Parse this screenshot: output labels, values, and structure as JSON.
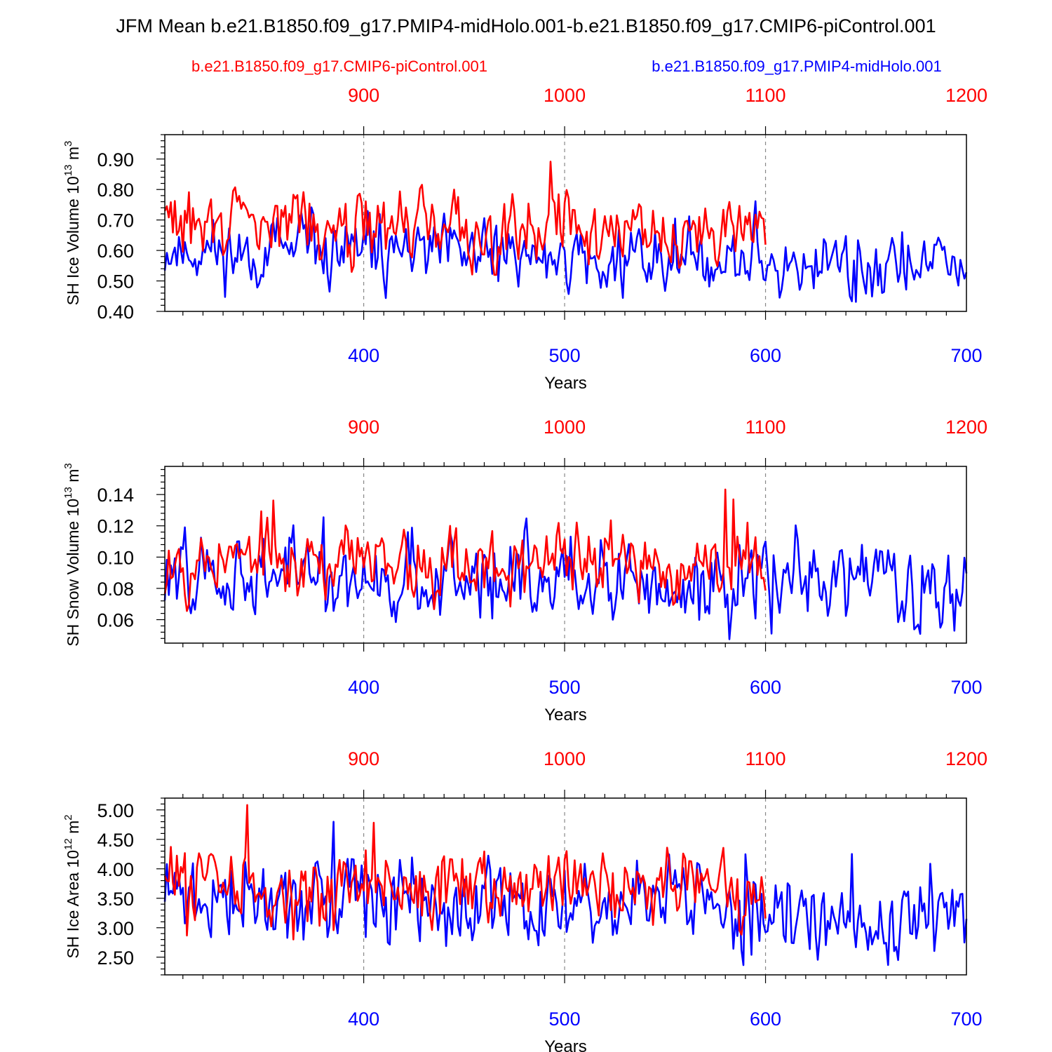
{
  "title": "JFM Mean b.e21.B1850.f09_g17.PMIP4-midHolo.001-b.e21.B1850.f09_g17.CMIP6-piControl.001",
  "legend_red": "b.e21.B1850.f09_g17.CMIP6-piControl.001",
  "legend_blue": "b.e21.B1850.f09_g17.PMIP4-midHolo.001",
  "colors": {
    "red": "#ff0000",
    "blue": "#0000ff",
    "black": "#000000",
    "grid": "#888888"
  },
  "chart_data": [
    {
      "type": "line",
      "id": "ice-volume",
      "ylabel": "SH Ice Volume 10",
      "ylabel_exp": "13",
      "ylabel_unit": " m",
      "ylabel_unit_exp": "3",
      "xlabel": "Years",
      "ylim": [
        0.4,
        0.98
      ],
      "yticks": [
        "0.40",
        "0.50",
        "0.60",
        "0.70",
        "0.80",
        "0.90"
      ],
      "bottom_xlim": [
        301,
        700
      ],
      "bottom_ticks": [
        "400",
        "500",
        "600",
        "700"
      ],
      "top_xlim": [
        801,
        1200
      ],
      "top_ticks": [
        "900",
        "1000",
        "1100",
        "1200"
      ],
      "series": [
        {
          "name": "b.e21.B1850.f09_g17.PMIP4-midHolo.001",
          "color": "blue",
          "x_start": 301,
          "x_end": 700,
          "base": 0.6,
          "amp": 0.075,
          "lo": 0.4,
          "hi": 0.85,
          "seed": 11,
          "trend": -0.05
        },
        {
          "name": "b.e21.B1850.f09_g17.CMIP6-piControl.001",
          "color": "red",
          "x_start": 301,
          "x_end": 600,
          "base": 0.695,
          "amp": 0.075,
          "lo": 0.52,
          "hi": 0.98,
          "seed": 29,
          "trend": -0.02
        }
      ]
    },
    {
      "type": "line",
      "id": "snow-volume",
      "ylabel": "SH Snow Volume 10",
      "ylabel_exp": "13",
      "ylabel_unit": " m",
      "ylabel_unit_exp": "3",
      "xlabel": "Years",
      "ylim": [
        0.045,
        0.158
      ],
      "yticks": [
        "0.06",
        "0.08",
        "0.10",
        "0.12",
        "0.14"
      ],
      "bottom_xlim": [
        301,
        700
      ],
      "bottom_ticks": [
        "400",
        "500",
        "600",
        "700"
      ],
      "top_xlim": [
        801,
        1200
      ],
      "top_ticks": [
        "900",
        "1000",
        "1100",
        "1200"
      ],
      "series": [
        {
          "name": "b.e21.B1850.f09_g17.PMIP4-midHolo.001",
          "color": "blue",
          "x_start": 301,
          "x_end": 700,
          "base": 0.09,
          "amp": 0.018,
          "lo": 0.045,
          "hi": 0.157,
          "seed": 47,
          "trend": -0.008
        },
        {
          "name": "b.e21.B1850.f09_g17.CMIP6-piControl.001",
          "color": "red",
          "x_start": 301,
          "x_end": 600,
          "base": 0.1,
          "amp": 0.016,
          "lo": 0.063,
          "hi": 0.158,
          "seed": 53,
          "trend": -0.005
        }
      ]
    },
    {
      "type": "line",
      "id": "ice-area",
      "ylabel": "SH Ice Area 10",
      "ylabel_exp": "12",
      "ylabel_unit": " m",
      "ylabel_unit_exp": "2",
      "xlabel": "Years",
      "ylim": [
        2.2,
        5.2
      ],
      "yticks": [
        "2.50",
        "3.00",
        "3.50",
        "4.00",
        "4.50",
        "5.00"
      ],
      "bottom_xlim": [
        301,
        700
      ],
      "bottom_ticks": [
        "400",
        "500",
        "600",
        "700"
      ],
      "top_xlim": [
        801,
        1200
      ],
      "top_ticks": [
        "900",
        "1000",
        "1100",
        "1200"
      ],
      "series": [
        {
          "name": "b.e21.B1850.f09_g17.PMIP4-midHolo.001",
          "color": "blue",
          "x_start": 301,
          "x_end": 700,
          "base": 3.5,
          "amp": 0.5,
          "lo": 2.2,
          "hi": 4.95,
          "seed": 71,
          "trend": -0.25
        },
        {
          "name": "b.e21.B1850.f09_g17.CMIP6-piControl.001",
          "color": "red",
          "x_start": 301,
          "x_end": 600,
          "base": 3.75,
          "amp": 0.42,
          "lo": 2.8,
          "hi": 5.2,
          "seed": 83,
          "trend": -0.15
        }
      ]
    }
  ]
}
